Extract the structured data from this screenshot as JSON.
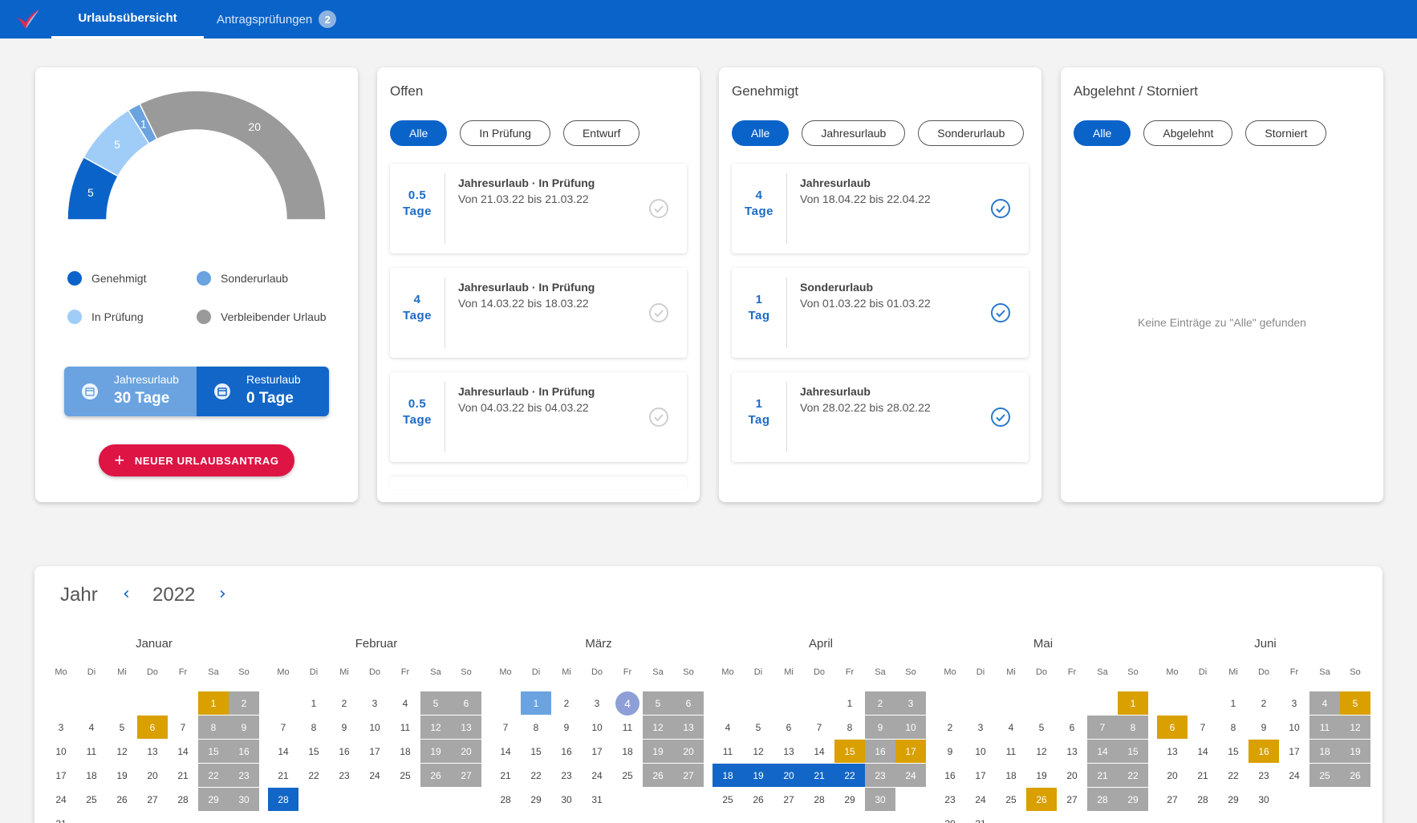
{
  "colors": {
    "primary": "#0a63c9",
    "approved": "#0a63c9",
    "special": "#6aa3e0",
    "pending": "#9fcdf7",
    "remaining": "#9a9a9a",
    "holiday": "#d9a000",
    "weekend": "#a7a7a7",
    "danger": "#dd1444"
  },
  "nav": {
    "tabs": [
      {
        "label": "Urlaubsübersicht",
        "active": true
      },
      {
        "label": "Antragsprüfungen",
        "badge": "2",
        "active": false
      }
    ]
  },
  "summary": {
    "donut": [
      {
        "name": "Genehmigt",
        "value": 5,
        "color": "#0a63c9"
      },
      {
        "name": "In Prüfung",
        "value": 5,
        "color": "#9fcdf7"
      },
      {
        "name": "Sonderurlaub",
        "value": 1,
        "color": "#6aa3e0"
      },
      {
        "name": "Verbleibender Urlaub",
        "value": 20,
        "color": "#9a9a9a"
      }
    ],
    "legend": [
      {
        "label": "Genehmigt",
        "color": "#0a63c9"
      },
      {
        "label": "Sonderurlaub",
        "color": "#6aa3e0"
      },
      {
        "label": "In Prüfung",
        "color": "#9fcdf7"
      },
      {
        "label": "Verbleibender Urlaub",
        "color": "#9a9a9a"
      }
    ],
    "jahresurlaub_label": "Jahresurlaub",
    "jahresurlaub_value": "30 Tage",
    "resturlaub_label": "Resturlaub",
    "resturlaub_value": "0 Tage",
    "new_button": "NEUER URLAUBSANTRAG",
    "calendar_icon": "calendar-icon",
    "plus_icon": "plus-icon"
  },
  "offen": {
    "title": "Offen",
    "chips": [
      "Alle",
      "In Prüfung",
      "Entwurf"
    ],
    "entries": [
      {
        "days_num": "0.5",
        "days_unit": "Tage",
        "title": "Jahresurlaub · In Prüfung",
        "range": "Von 21.03.22 bis 21.03.22"
      },
      {
        "days_num": "4",
        "days_unit": "Tage",
        "title": "Jahresurlaub · In Prüfung",
        "range": "Von 14.03.22 bis 18.03.22"
      },
      {
        "days_num": "0.5",
        "days_unit": "Tage",
        "title": "Jahresurlaub · In Prüfung",
        "range": "Von 04.03.22 bis 04.03.22"
      }
    ]
  },
  "genehmigt": {
    "title": "Genehmigt",
    "chips": [
      "Alle",
      "Jahresurlaub",
      "Sonderurlaub"
    ],
    "entries": [
      {
        "days_num": "4",
        "days_unit": "Tage",
        "title": "Jahresurlaub",
        "range": "Von 18.04.22 bis 22.04.22"
      },
      {
        "days_num": "1",
        "days_unit": "Tag",
        "title": "Sonderurlaub",
        "range": "Von 01.03.22 bis 01.03.22"
      },
      {
        "days_num": "1",
        "days_unit": "Tag",
        "title": "Jahresurlaub",
        "range": "Von 28.02.22 bis 28.02.22"
      }
    ]
  },
  "abgelehnt": {
    "title": "Abgelehnt / Storniert",
    "chips": [
      "Alle",
      "Abgelehnt",
      "Storniert"
    ],
    "empty": "Keine Einträge zu \"Alle\" gefunden"
  },
  "calendar": {
    "label": "Jahr",
    "year": "2022",
    "prev_icon": "chevron-left-icon",
    "next_icon": "chevron-right-icon",
    "weekdays": [
      "Mo",
      "Di",
      "Mi",
      "Do",
      "Fr",
      "Sa",
      "So"
    ],
    "months": [
      {
        "name": "Januar",
        "offset": 5,
        "days": 31,
        "holidays": [
          1,
          6
        ],
        "approved": [],
        "special": [],
        "today": 0
      },
      {
        "name": "Februar",
        "offset": 1,
        "days": 28,
        "holidays": [],
        "approved": [
          28
        ],
        "special": [],
        "today": 0
      },
      {
        "name": "März",
        "offset": 1,
        "days": 31,
        "holidays": [],
        "approved": [],
        "special": [
          1
        ],
        "today": 4
      },
      {
        "name": "April",
        "offset": 4,
        "days": 30,
        "holidays": [
          15,
          17
        ],
        "approved": [
          18,
          19,
          20,
          21,
          22
        ],
        "special": [],
        "today": 0
      },
      {
        "name": "Mai",
        "offset": 6,
        "days": 31,
        "holidays": [
          1,
          26
        ],
        "approved": [],
        "special": [],
        "today": 0
      },
      {
        "name": "Juni",
        "offset": 2,
        "days": 30,
        "holidays": [
          5,
          6,
          16
        ],
        "approved": [],
        "special": [],
        "today": 0
      }
    ]
  }
}
